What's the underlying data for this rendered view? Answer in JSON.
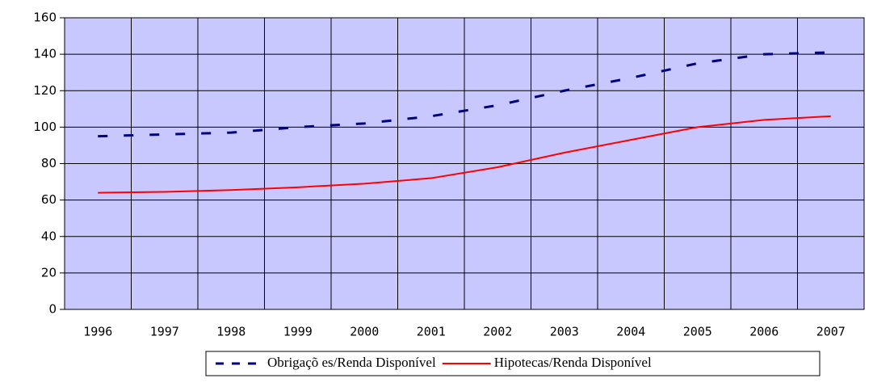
{
  "chart_data": {
    "type": "line",
    "categories": [
      "1996",
      "1997",
      "1998",
      "1999",
      "2000",
      "2001",
      "2002",
      "2003",
      "2004",
      "2005",
      "2006",
      "2007"
    ],
    "series": [
      {
        "name": "Obrigaçõ es/Renda Disponível",
        "color": "#000080",
        "values": [
          95,
          96,
          97,
          100,
          102,
          106,
          112,
          120,
          127,
          135,
          140,
          141
        ]
      },
      {
        "name": "Hipotecas/Renda Disponível",
        "color": "#ff0000",
        "values": [
          64,
          64.5,
          65.5,
          67,
          69,
          72,
          78,
          86,
          93,
          100,
          104,
          106
        ]
      }
    ],
    "ylim": [
      0,
      160
    ],
    "yticks": [
      0,
      20,
      40,
      60,
      80,
      100,
      120,
      140,
      160
    ],
    "grid": true
  }
}
